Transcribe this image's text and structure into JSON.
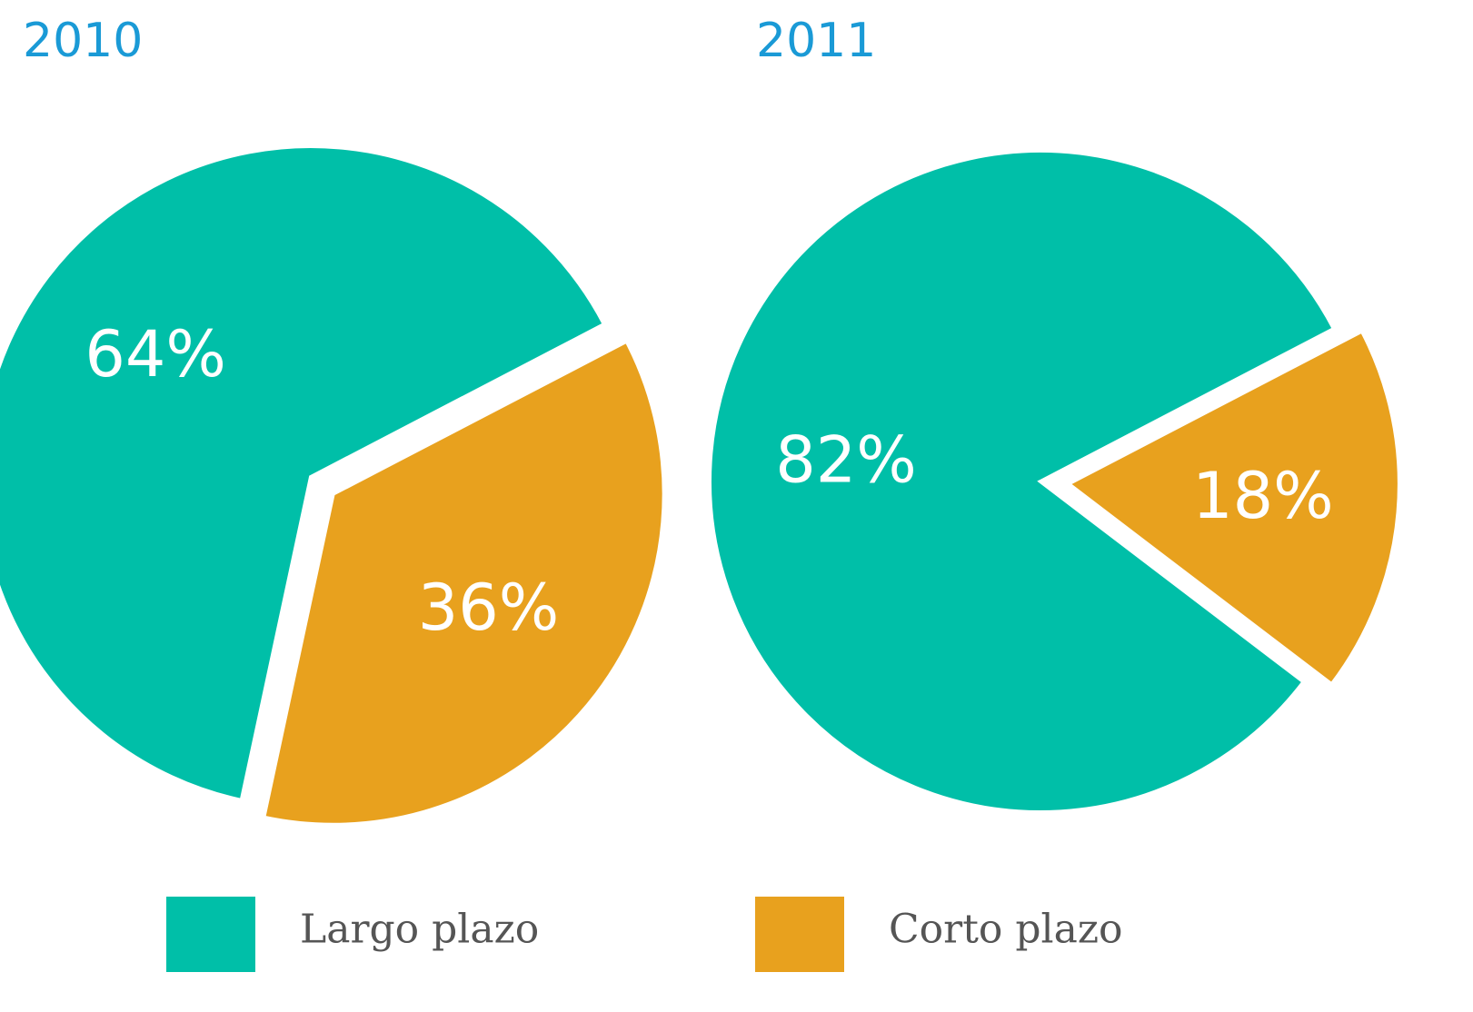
{
  "chart_data": [
    {
      "type": "pie",
      "title": "2010",
      "categories": [
        "Largo plazo",
        "Corto plazo"
      ],
      "values": [
        64,
        36
      ],
      "value_labels": [
        "64%",
        "36%"
      ],
      "colors": [
        "#00bfa8",
        "#e8a11e"
      ]
    },
    {
      "type": "pie",
      "title": "2011",
      "categories": [
        "Largo plazo",
        "Corto plazo"
      ],
      "values": [
        82,
        18
      ],
      "value_labels": [
        "82%",
        "18%"
      ],
      "colors": [
        "#00bfa8",
        "#e8a11e"
      ]
    }
  ]
}
